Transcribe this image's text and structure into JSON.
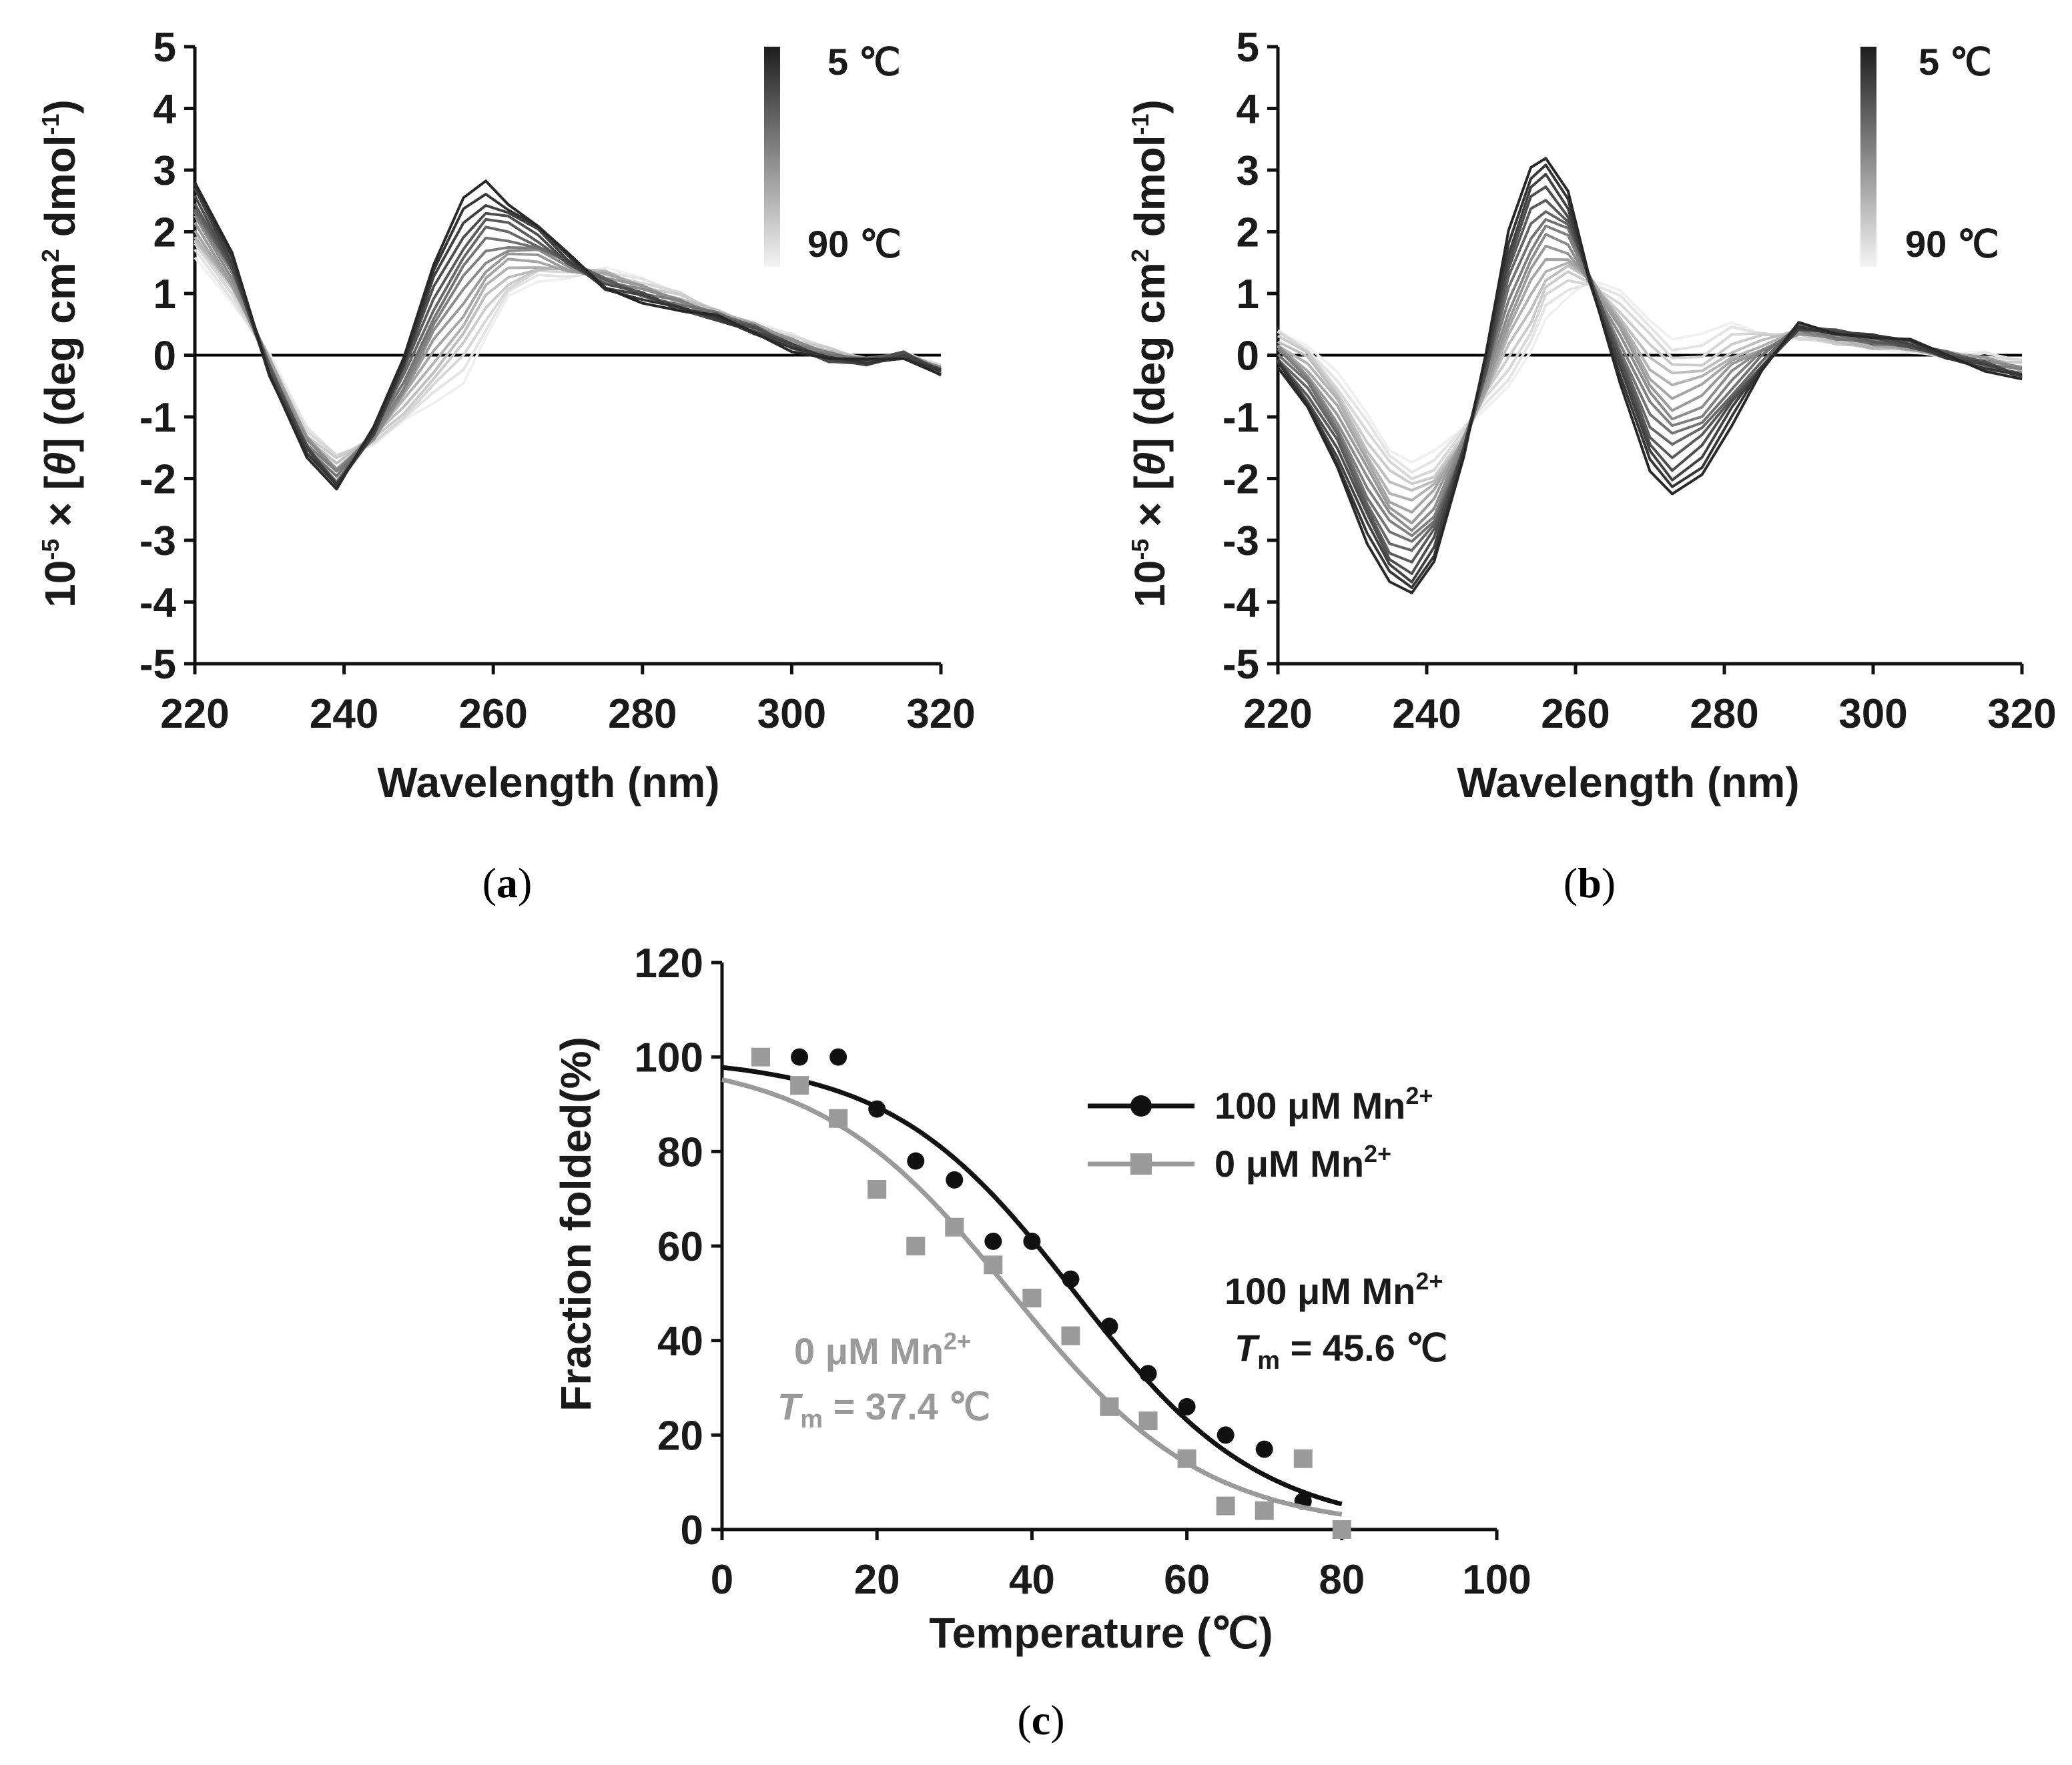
{
  "chart_data": [
    {
      "id": "a",
      "type": "line",
      "panel_label": "a",
      "xlabel": "Wavelength (nm)",
      "ylabel": "10⁻⁵ × [θ] (deg cm² dmol⁻¹)",
      "xlim": [
        220,
        320
      ],
      "ylim": [
        -5,
        5
      ],
      "xticks": [
        220,
        240,
        260,
        280,
        300,
        320
      ],
      "yticks": [
        5,
        4,
        3,
        2,
        1,
        0,
        -1,
        -2,
        -3,
        -4,
        -5
      ],
      "colorbar": {
        "top_label": "5 ℃",
        "bottom_label": "90 ℃"
      },
      "temperature_series_count": 17,
      "x": [
        220,
        225,
        230,
        235,
        239,
        244,
        248,
        252,
        256,
        259,
        262,
        266,
        270,
        275,
        280,
        285,
        290,
        295,
        300,
        305,
        310,
        315,
        320
      ],
      "series_extremes": [
        {
          "name": "5 ℃",
          "values": [
            2.8,
            1.6,
            -0.3,
            -1.6,
            -2.2,
            -1.2,
            0.0,
            1.5,
            2.5,
            2.8,
            2.5,
            2.1,
            1.6,
            1.1,
            0.9,
            0.7,
            0.6,
            0.4,
            0.1,
            -0.1,
            -0.1,
            0.0,
            -0.3
          ]
        },
        {
          "name": "90 ℃",
          "values": [
            1.6,
            0.9,
            0.0,
            -1.2,
            -1.6,
            -1.4,
            -1.1,
            -0.8,
            -0.4,
            0.3,
            0.9,
            1.2,
            1.3,
            1.4,
            1.2,
            1.0,
            0.7,
            0.5,
            0.3,
            0.1,
            -0.1,
            0.0,
            -0.2
          ]
        }
      ]
    },
    {
      "id": "b",
      "type": "line",
      "panel_label": "b",
      "xlabel": "Wavelength (nm)",
      "ylabel": "10⁻⁵ × [θ] (deg cm² dmol⁻¹)",
      "xlim": [
        220,
        320
      ],
      "ylim": [
        -5,
        5
      ],
      "xticks": [
        220,
        240,
        260,
        280,
        300,
        320
      ],
      "yticks": [
        5,
        4,
        3,
        2,
        1,
        0,
        -1,
        -2,
        -3,
        -4,
        -5
      ],
      "colorbar": {
        "top_label": "5 ℃",
        "bottom_label": "90 ℃"
      },
      "temperature_series_count": 17,
      "x": [
        220,
        224,
        228,
        232,
        235,
        238,
        241,
        245,
        248,
        251,
        254,
        256,
        259,
        262,
        266,
        270,
        273,
        277,
        281,
        285,
        290,
        295,
        300,
        305,
        310,
        315,
        320
      ],
      "series_extremes": [
        {
          "name": "5 ℃",
          "values": [
            -0.2,
            -0.9,
            -1.8,
            -3.0,
            -3.7,
            -3.9,
            -3.3,
            -1.6,
            0.0,
            2.0,
            3.1,
            3.2,
            2.6,
            1.2,
            -0.4,
            -1.9,
            -2.3,
            -1.9,
            -1.1,
            -0.3,
            0.5,
            0.4,
            0.3,
            0.2,
            0.0,
            -0.2,
            -0.4
          ]
        },
        {
          "name": "90 ℃",
          "values": [
            0.4,
            0.2,
            -0.3,
            -1.0,
            -1.5,
            -1.7,
            -1.6,
            -1.2,
            -0.8,
            -0.5,
            0.0,
            0.6,
            1.0,
            1.2,
            1.0,
            0.6,
            0.3,
            0.3,
            0.5,
            0.4,
            0.3,
            0.2,
            0.1,
            0.1,
            0.0,
            0.0,
            -0.1
          ]
        }
      ]
    },
    {
      "id": "c",
      "type": "scatter",
      "panel_label": "c",
      "xlabel": "Temperature (℃)",
      "ylabel": "Fraction folded(%)",
      "xlim": [
        0,
        100
      ],
      "ylim": [
        0,
        120
      ],
      "xticks": [
        0,
        20,
        40,
        60,
        80,
        100
      ],
      "yticks": [
        120,
        100,
        80,
        60,
        40,
        20,
        0
      ],
      "x": [
        5,
        10,
        15,
        20,
        25,
        30,
        35,
        40,
        45,
        50,
        55,
        60,
        65,
        70,
        75,
        80
      ],
      "series": [
        {
          "name": "100 μM Mn²⁺",
          "marker": "circle",
          "color": "#111111",
          "values": [
            100,
            100,
            100,
            89,
            78,
            74,
            61,
            61,
            53,
            43,
            33,
            26,
            20,
            17,
            6,
            0
          ],
          "fit": {
            "Tm": 45.6,
            "top": 100,
            "slope": 12
          }
        },
        {
          "name": "0 μM Mn²⁺",
          "marker": "square",
          "color": "#9a9a9a",
          "values": [
            100,
            94,
            87,
            72,
            60,
            64,
            56,
            49,
            41,
            26,
            23,
            15,
            5,
            4,
            15,
            0
          ],
          "fit": {
            "Tm": 37.4,
            "top": 100,
            "slope": 12.5
          }
        }
      ],
      "annotations": [
        {
          "series": "100 μM Mn²⁺",
          "line1": "100 μM Mn",
          "sup": "2+",
          "tm_prefix": "T",
          "tm_sub": "m",
          "tm_value": " = 45.6 ℃"
        },
        {
          "series": "0 μM Mn²⁺",
          "line1": "0 μM Mn",
          "sup": "2+",
          "tm_prefix": "T",
          "tm_sub": "m",
          "tm_value": " = 37.4 ℃"
        }
      ]
    }
  ],
  "legend": {
    "items": [
      {
        "label": "100 μM Mn",
        "sup": "2+"
      },
      {
        "label": "0 μM Mn",
        "sup": "2+"
      }
    ]
  },
  "captions": {
    "a": "a",
    "b": "b",
    "c": "c"
  },
  "ylabel_parts": {
    "prefix": "10",
    "prefix_sup": "-5",
    "mid": " × [",
    "theta": "θ",
    "after": "] (deg cm",
    "sq": "2",
    "unit": " dmol",
    "unit_sup": "-1",
    "close": ")"
  }
}
